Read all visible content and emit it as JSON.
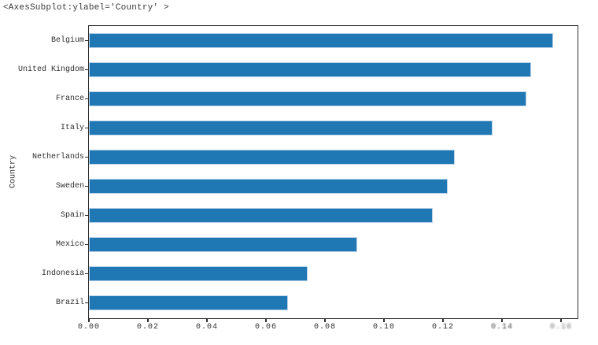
{
  "repl_output": "<AxesSubplot:ylabel='Country' >",
  "colors": {
    "bar": "#1f77b4",
    "bar_edge": "#b9d2ea",
    "spine": "#2e2e2e",
    "text": "#2e2e2e",
    "background": "#ffffff"
  },
  "chart_data": {
    "type": "bar",
    "orientation": "horizontal",
    "title": "",
    "xlabel": "",
    "ylabel": "Country",
    "categories": [
      "Belgium",
      "United Kingdom",
      "France",
      "Italy",
      "Netherlands",
      "Sweden",
      "Spain",
      "Mexico",
      "Indonesia",
      "Brazil"
    ],
    "values": [
      0.1572,
      0.1499,
      0.1483,
      0.1368,
      0.1241,
      0.1217,
      0.1165,
      0.091,
      0.0742,
      0.0674
    ],
    "xlim": [
      0,
      0.16533
    ],
    "x_ticks": [
      0.0,
      0.02,
      0.04,
      0.06,
      0.08,
      0.1,
      0.12,
      0.14,
      0.16
    ],
    "x_tick_labels": [
      "0.00",
      "0.02",
      "0.04",
      "0.06",
      "0.08",
      "0.10",
      "0.12",
      "0.14",
      "0.16"
    ],
    "degraded_x_tick_labels": [
      "0.14",
      "0.16"
    ],
    "grid": false,
    "legend_position": "none",
    "bar_color": "#1f77b4"
  }
}
